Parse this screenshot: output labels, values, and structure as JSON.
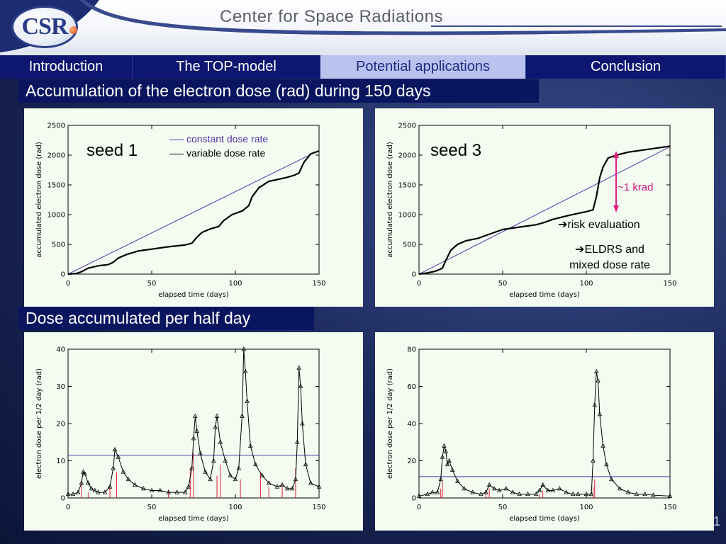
{
  "header": {
    "logo_text": "CSR",
    "center_title": "Center for Space Radiations"
  },
  "nav": {
    "tabs": [
      {
        "label": "Introduction",
        "active": false
      },
      {
        "label": "The TOP-model",
        "active": false
      },
      {
        "label": "Potential applications",
        "active": true
      },
      {
        "label": "Conclusion",
        "active": false
      }
    ]
  },
  "section1_title": "Accumulation of the electron dose (rad) during 150 days",
  "section2_title": "Dose accumulated per half day",
  "annotations": {
    "seed1": "seed 1",
    "seed3": "seed 3",
    "legend_constant": "constant dose rate",
    "legend_variable": "variable dose rate",
    "krad": "~1 krad",
    "risk": "risk evaluation",
    "eldrs_line1": "ELDRS and",
    "eldrs_line2": "mixed dose rate",
    "arrow": "➔"
  },
  "page_number": "1",
  "colors": {
    "constant": "#5533aa",
    "variable": "#000000",
    "spike": "#e0203a",
    "arrow": "#e0207e"
  },
  "chart_data": [
    {
      "type": "line",
      "panel": "seed 1 cumulative",
      "xlabel": "elapsed time (days)",
      "ylabel": "accumulated electron dose (rad)",
      "xlim": [
        0,
        150
      ],
      "ylim": [
        0,
        2500
      ],
      "xticks": [
        0,
        50,
        100,
        150
      ],
      "yticks": [
        0,
        500,
        1000,
        1500,
        2000,
        2500
      ],
      "series": [
        {
          "name": "constant dose rate",
          "x": [
            0,
            150
          ],
          "y": [
            0,
            2080
          ]
        },
        {
          "name": "variable dose rate",
          "x": [
            0,
            5,
            8,
            12,
            18,
            24,
            27,
            30,
            35,
            42,
            50,
            60,
            70,
            74,
            77,
            80,
            85,
            90,
            93,
            98,
            104,
            108,
            110,
            114,
            120,
            130,
            135,
            138,
            141,
            145,
            150
          ],
          "y": [
            0,
            10,
            40,
            100,
            140,
            160,
            200,
            270,
            330,
            390,
            420,
            460,
            490,
            520,
            620,
            700,
            760,
            800,
            900,
            1000,
            1060,
            1150,
            1300,
            1450,
            1560,
            1620,
            1660,
            1700,
            1880,
            2020,
            2070
          ]
        }
      ]
    },
    {
      "type": "line",
      "panel": "seed 3 cumulative",
      "xlabel": "elapsed time (days)",
      "ylabel": "accumulated electron dose (rad)",
      "xlim": [
        0,
        150
      ],
      "ylim": [
        0,
        2500
      ],
      "xticks": [
        0,
        50,
        100,
        150
      ],
      "yticks": [
        0,
        500,
        1000,
        1500,
        2000,
        2500
      ],
      "series": [
        {
          "name": "constant dose rate",
          "x": [
            0,
            150
          ],
          "y": [
            0,
            2140
          ]
        },
        {
          "name": "variable dose rate",
          "x": [
            0,
            5,
            10,
            14,
            16,
            19,
            23,
            28,
            35,
            40,
            50,
            60,
            70,
            75,
            80,
            90,
            100,
            104,
            106,
            108,
            110,
            113,
            118,
            125,
            135,
            145,
            150
          ],
          "y": [
            0,
            20,
            50,
            100,
            230,
            400,
            500,
            560,
            600,
            650,
            750,
            790,
            830,
            870,
            920,
            990,
            1050,
            1080,
            1300,
            1620,
            1800,
            1950,
            2000,
            2050,
            2090,
            2130,
            2150
          ]
        }
      ]
    },
    {
      "type": "line",
      "panel": "seed 1 per half day",
      "xlabel": "elapsed time (days)",
      "ylabel": "electron dose per 1/2 day (rad)",
      "xlim": [
        0,
        150
      ],
      "ylim": [
        0,
        40
      ],
      "xticks": [
        0,
        50,
        100,
        150
      ],
      "yticks": [
        0,
        10,
        20,
        30,
        40
      ],
      "constant_level": 11.5,
      "series": [
        {
          "name": "",
          "x": [
            0,
            3,
            6,
            8,
            9,
            10,
            12,
            14,
            16,
            18,
            22,
            25,
            27,
            28,
            30,
            33,
            36,
            40,
            45,
            50,
            55,
            60,
            65,
            70,
            72,
            74,
            75,
            76,
            77,
            79,
            82,
            85,
            87,
            88,
            89,
            91,
            94,
            97,
            100,
            102,
            104,
            105,
            106,
            107,
            109,
            112,
            116,
            120,
            125,
            128,
            131,
            134,
            136,
            137,
            138,
            139,
            140,
            142,
            145,
            150
          ],
          "y": [
            1,
            1,
            1.5,
            4,
            7,
            6.5,
            4,
            2.5,
            2,
            1.5,
            1.5,
            3,
            8,
            13,
            11,
            7,
            5,
            3.5,
            2.5,
            2,
            2,
            1.5,
            1.5,
            1.5,
            3,
            8,
            16,
            22,
            18,
            12,
            7,
            5,
            10,
            19,
            22,
            15,
            10,
            6,
            5,
            8,
            22,
            40,
            34,
            26,
            14,
            9,
            6,
            4,
            3,
            3.5,
            2.5,
            2.5,
            5,
            15,
            35,
            30,
            20,
            9,
            4,
            3
          ]
        },
        {
          "name": "",
          "x": [
            8,
            12,
            25,
            29,
            60,
            73,
            75,
            89,
            91,
            103,
            115,
            120,
            128,
            136
          ],
          "y": [
            4,
            1.5,
            3,
            7,
            2,
            8,
            12,
            6,
            9,
            5,
            7,
            3,
            3,
            8
          ]
        }
      ]
    },
    {
      "type": "line",
      "panel": "seed 3 per half day",
      "xlabel": "elapsed time (days)",
      "ylabel": "electron dose per 1/2 day (rad)",
      "xlim": [
        0,
        150
      ],
      "ylim": [
        0,
        80
      ],
      "xticks": [
        0,
        50,
        100,
        150
      ],
      "yticks": [
        0,
        20,
        40,
        60,
        80
      ],
      "constant_level": 11.5,
      "series": [
        {
          "name": "",
          "x": [
            0,
            5,
            8,
            11,
            13,
            14,
            15,
            16,
            17,
            18,
            20,
            23,
            27,
            32,
            37,
            40,
            42,
            45,
            48,
            52,
            56,
            60,
            65,
            70,
            72,
            74,
            77,
            80,
            84,
            88,
            92,
            95,
            100,
            103,
            104,
            105,
            106,
            107,
            108,
            110,
            112,
            115,
            120,
            125,
            130,
            135,
            140,
            150
          ],
          "y": [
            1,
            2,
            3,
            3,
            10,
            22,
            28,
            25,
            18,
            20,
            15,
            9,
            5,
            3,
            2,
            3,
            7,
            5,
            4,
            5,
            3,
            2,
            2,
            2,
            4,
            7,
            4,
            4,
            5,
            3,
            2,
            2,
            2,
            2,
            20,
            50,
            68,
            63,
            45,
            28,
            18,
            10,
            5,
            3,
            2,
            2,
            1.5,
            1
          ]
        },
        {
          "name": "",
          "x": [
            13,
            14,
            40,
            42,
            72,
            74,
            104,
            105
          ],
          "y": [
            5,
            9,
            3,
            5,
            2,
            4,
            6,
            10
          ]
        }
      ]
    }
  ]
}
